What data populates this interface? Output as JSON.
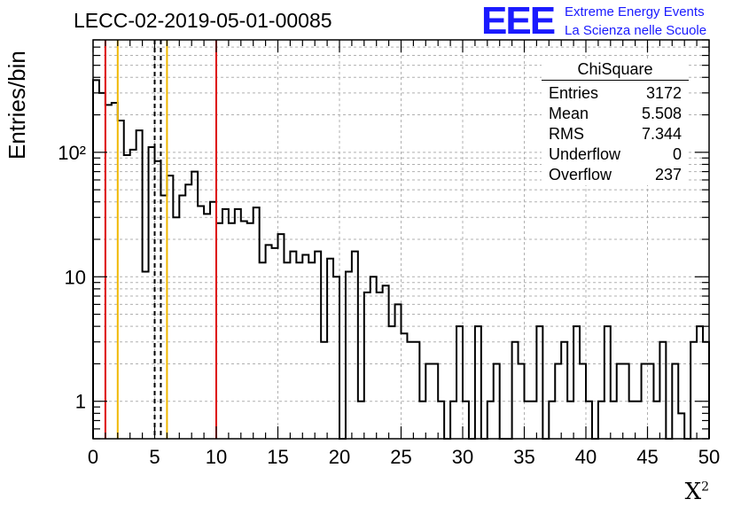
{
  "header": {
    "title": "LECC-02-2019-05-01-00085"
  },
  "logo": {
    "mark": "EEE",
    "line1": "Extreme Energy Events",
    "line2": "La Scienza nelle Scuole",
    "color": "#1a1aff"
  },
  "stats": {
    "title": "ChiSquare",
    "rows": [
      {
        "label": "Entries",
        "value": "3172"
      },
      {
        "label": "Mean",
        "value": "5.508"
      },
      {
        "label": "RMS",
        "value": "7.344"
      },
      {
        "label": "Underflow",
        "value": "0"
      },
      {
        "label": "Overflow",
        "value": "237"
      }
    ]
  },
  "chart_data": {
    "type": "bar",
    "histogram": true,
    "title": "LECC-02-2019-05-01-00085",
    "xlabel": "X²",
    "ylabel": "Entries/bin",
    "xlim": [
      0,
      50
    ],
    "ylim": [
      0.5,
      800
    ],
    "yscale": "log",
    "grid": true,
    "bin_width": 0.5,
    "x_ticks": [
      0,
      5,
      10,
      15,
      20,
      25,
      30,
      35,
      40,
      45,
      50
    ],
    "y_tick_labels": [
      "1",
      "10",
      "10²"
    ],
    "values": [
      380,
      300,
      240,
      250,
      180,
      95,
      105,
      150,
      11,
      110,
      85,
      45,
      65,
      30,
      45,
      55,
      70,
      37,
      32,
      40,
      27,
      35,
      27,
      35,
      28,
      27,
      36,
      13,
      18,
      17,
      22,
      13,
      16,
      13,
      15,
      13,
      16,
      3,
      14,
      10,
      0,
      11,
      16,
      1,
      7.5,
      10,
      7.5,
      8.5,
      4,
      6,
      3.5,
      3,
      3,
      1,
      2,
      2,
      1,
      0,
      1,
      4,
      1,
      0,
      4,
      0,
      1,
      2,
      0,
      0,
      3,
      2,
      1,
      1,
      4,
      0,
      1,
      2,
      3,
      1,
      4,
      2,
      1,
      0,
      1,
      4,
      1,
      2,
      2,
      1,
      1,
      2,
      2,
      1,
      3,
      0,
      2,
      0.8,
      0,
      3,
      4,
      3
    ],
    "vertical_lines": [
      {
        "x": 1.0,
        "color": "#dd0000",
        "style": "solid"
      },
      {
        "x": 2.0,
        "color": "#f0b800",
        "style": "solid"
      },
      {
        "x": 5.0,
        "color": "#000000",
        "style": "dashed"
      },
      {
        "x": 5.5,
        "color": "#000000",
        "style": "dashed"
      },
      {
        "x": 6.0,
        "color": "#f0b800",
        "style": "solid"
      },
      {
        "x": 10.0,
        "color": "#dd0000",
        "style": "solid"
      }
    ]
  }
}
